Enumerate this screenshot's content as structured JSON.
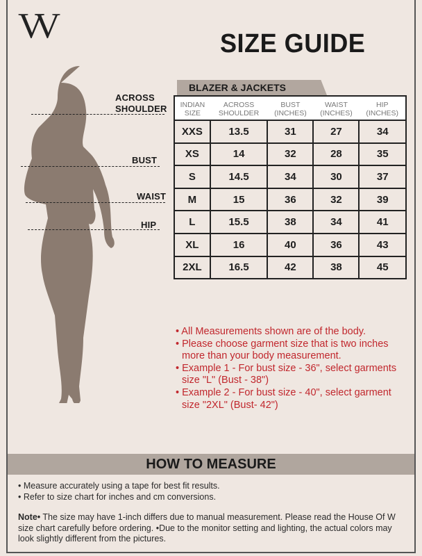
{
  "brand": {
    "logo": "W"
  },
  "title": "SIZE GUIDE",
  "category_tab": "BLAZER & JACKETS",
  "figure_labels": {
    "across_shoulder": [
      "ACROSS",
      "SHOULDER"
    ],
    "bust": "BUST",
    "waist": "WAIST",
    "hip": "HIP"
  },
  "table": {
    "headers": [
      [
        "INDIAN",
        "SIZE"
      ],
      [
        "ACROSS",
        "SHOULDER"
      ],
      [
        "BUST",
        "(INCHES)"
      ],
      [
        "WAIST",
        "(INCHES)"
      ],
      [
        "HIP",
        "(INCHES)"
      ]
    ],
    "rows": [
      [
        "XXS",
        "13.5",
        "31",
        "27",
        "34"
      ],
      [
        "XS",
        "14",
        "32",
        "28",
        "35"
      ],
      [
        "S",
        "14.5",
        "34",
        "30",
        "37"
      ],
      [
        "M",
        "15",
        "36",
        "32",
        "39"
      ],
      [
        "L",
        "15.5",
        "38",
        "34",
        "41"
      ],
      [
        "XL",
        "16",
        "40",
        "36",
        "43"
      ],
      [
        "2XL",
        "16.5",
        "42",
        "38",
        "45"
      ]
    ]
  },
  "notes": [
    "• All Measurements shown are of the body.",
    "• Please choose garment size that is two inches more than your body measurement.",
    "• Example 1 - For bust size - 36\", select garments size \"L\" (Bust - 38\")",
    "• Example 2 - For bust size - 40\", select garment size \"2XL\" (Bust- 42\")"
  ],
  "how_to_measure": {
    "title": "HOW TO MEASURE",
    "bullets": [
      "• Measure accurately using a tape for best fit results.",
      "• Refer to size chart for inches and cm conversions."
    ],
    "note_label": "Note•",
    "note_text": " The size may have 1-inch differs due to manual measurement. Please read the House Of W size chart carefully before ordering. •Due to the monitor setting and lighting, the actual colors may look slightly different from the pictures."
  },
  "colors": {
    "background": "#efe7e1",
    "silhouette": "#8b7b70",
    "accent_band": "#b0a69e",
    "note_red": "#c1272d"
  }
}
